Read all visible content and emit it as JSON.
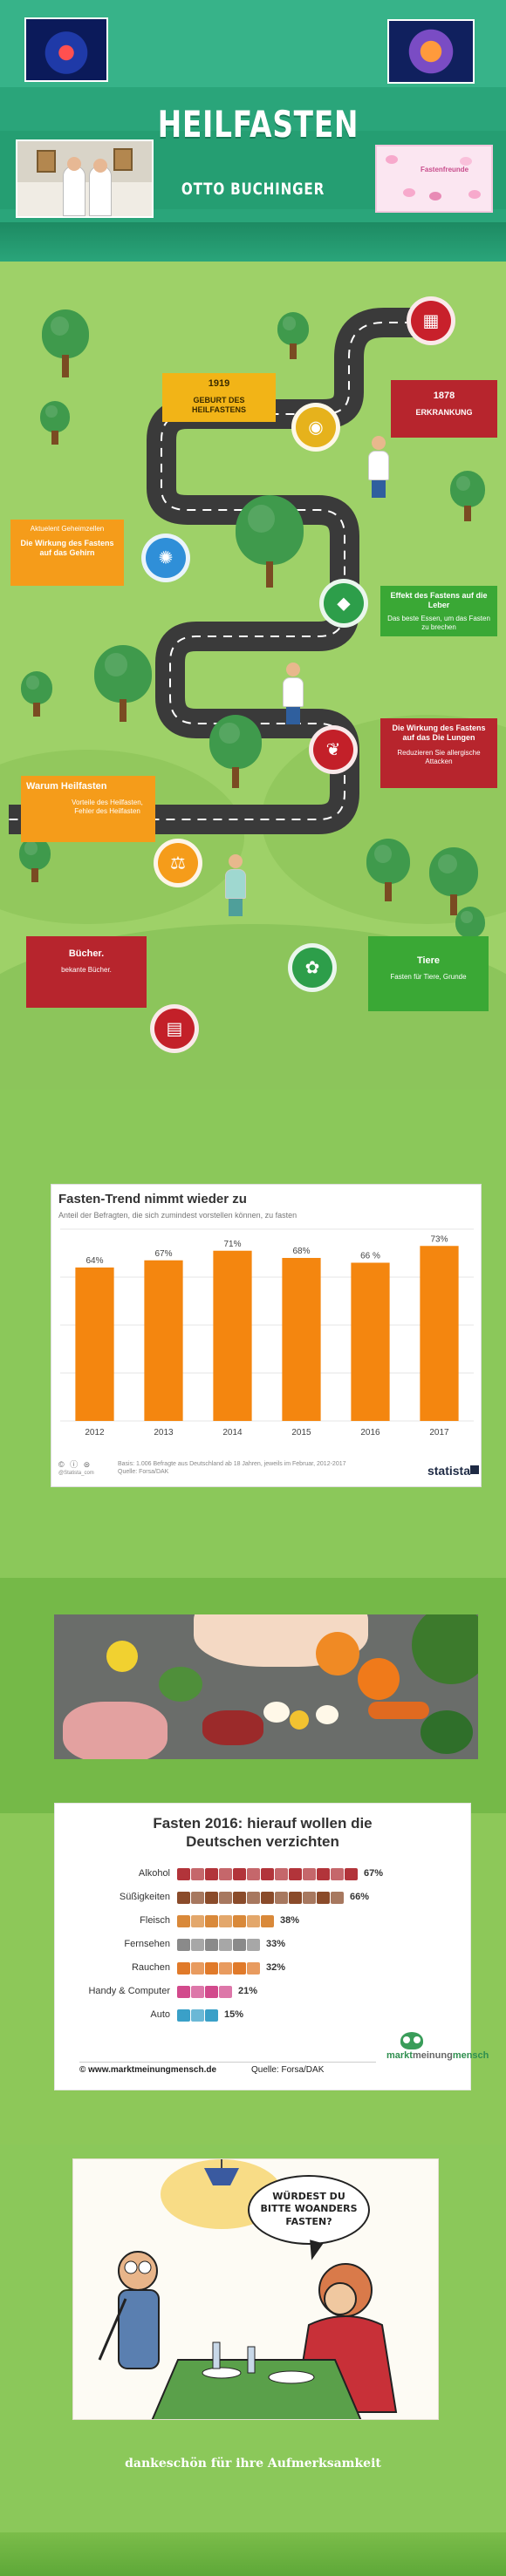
{
  "header": {
    "title": "HEILFASTEN",
    "subtitle": "OTTO BUCHINGER",
    "fasting_label": "Fastenfreunde"
  },
  "timeline": {
    "c1919": {
      "year": "1919",
      "text": "GEBURT DES HEILFASTENS"
    },
    "c1878": {
      "year": "1878",
      "text": "ERKRANKUNG"
    },
    "gehirn": {
      "top": "Aktuelent Geheimzellen",
      "title": "Die Wirkung des Fastens auf das Gehirn"
    },
    "leber": {
      "title": "Effekt des Fastens auf die Leber",
      "text": "Das beste Essen, um das Fasten zu brechen"
    },
    "lungen": {
      "title": "Die Wirkung des Fastens auf das Die Lungen",
      "text": "Reduzieren Sie allergische Attacken"
    },
    "warum": {
      "title": "Warum Heilfasten",
      "text": "Vorteile des Heilfasten, Fehler des Heilfasten"
    },
    "buecher": {
      "title": "Bücher.",
      "text": "bekante Bücher."
    },
    "tiere": {
      "title": "Tiere",
      "text": "Fasten für Tiere, Grunde"
    }
  },
  "chart1": {
    "title": "Fasten-Trend nimmt wieder zu",
    "subtitle": "Anteil der Befragten, die sich zumindest vorstellen können, zu fasten",
    "note_line1": "Basis: 1.006 Befragte aus Deutschland ab 18 Jahren, jeweils im Februar, 2012-2017",
    "note_line2": "Quelle: Forsa/DAK",
    "cc": "© ⓘ ⊜",
    "handle": "@Statista_com",
    "brand": "statista",
    "bar_color": "#f4860f"
  },
  "chart_data": [
    {
      "type": "bar",
      "title": "Fasten-Trend nimmt wieder zu",
      "categories": [
        "2012",
        "2013",
        "2014",
        "2015",
        "2016",
        "2017"
      ],
      "values": [
        64,
        67,
        71,
        68,
        66,
        73
      ],
      "labels": [
        "64%",
        "67%",
        "71%",
        "68%",
        "66 %",
        "73%"
      ],
      "ylim": [
        0,
        80
      ],
      "grid": true
    },
    {
      "type": "bar",
      "title": "Fasten 2016: hierauf wollen die Deutschen verzichten",
      "categories": [
        "Alkohol",
        "Süßigkeiten",
        "Fleisch",
        "Fernsehen",
        "Rauchen",
        "Handy & Computer",
        "Auto"
      ],
      "values": [
        67,
        66,
        38,
        33,
        32,
        21,
        15
      ],
      "labels": [
        "67%",
        "66%",
        "38%",
        "33%",
        "32%",
        "21%",
        "15%"
      ],
      "colors": [
        "#b2343a",
        "#8a4b2a",
        "#d9893a",
        "#8a8a8a",
        "#e07a2a",
        "#d24a8c",
        "#3aa0c8"
      ],
      "ylim": [
        0,
        100
      ]
    }
  ],
  "chart2": {
    "title_line1": "Fasten 2016: hierauf wollen die",
    "title_line2": "Deutschen verzichten",
    "url": "© www.marktmeinungmensch.de",
    "source": "Quelle: Forsa/DAK",
    "logo_a": "markt",
    "logo_b": "meinung",
    "logo_c": "mensch"
  },
  "cartoon": {
    "line1": "WÜRDEST DU",
    "line2": "BITTE WOANDERS",
    "line3": "FASTEN?"
  },
  "footer": {
    "thanks": "dankeschön für ihre Aufmerksamkeit"
  }
}
